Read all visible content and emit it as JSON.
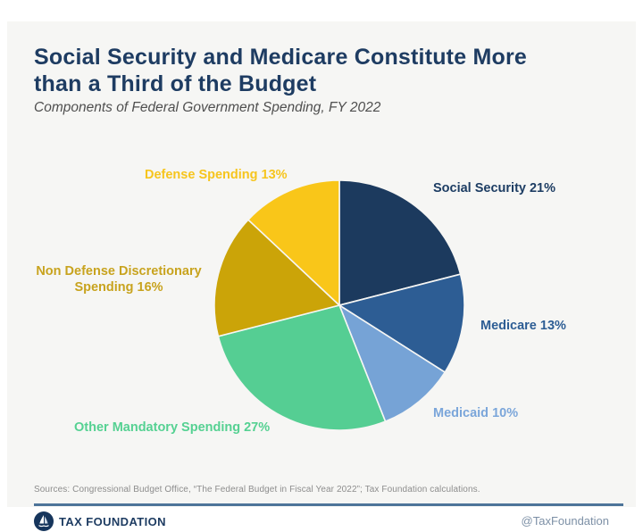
{
  "header": {
    "title": "Social Security and Medicare Constitute More\nthan a Third of the Budget",
    "subtitle": "Components of Federal Government Spending, FY 2022"
  },
  "chart_data": {
    "type": "pie",
    "title": "Components of Federal Government Spending, FY 2022",
    "unit": "percent of federal spending",
    "total": 100,
    "start_angle_deg": 0,
    "direction": "clockwise",
    "legend_position": "outside-labels",
    "slices": [
      {
        "id": "social-security",
        "label": "Social Security",
        "value": 21,
        "display_label": "Social Security 21%",
        "color": "#1c3a5e",
        "label_color": "#1d3d63"
      },
      {
        "id": "medicare",
        "label": "Medicare",
        "value": 13,
        "display_label": "Medicare 13%",
        "color": "#2d5d94",
        "label_color": "#2d5d94"
      },
      {
        "id": "medicaid",
        "label": "Medicaid",
        "value": 10,
        "display_label": "Medicaid 10%",
        "color": "#76a3d6",
        "label_color": "#7ba6da"
      },
      {
        "id": "other-mandatory",
        "label": "Other Mandatory Spending",
        "value": 27,
        "display_label": "Other Mandatory Spending 27%",
        "color": "#55ce93",
        "label_color": "#55d192"
      },
      {
        "id": "non-defense-discretionary",
        "label": "Non Defense Discretionary Spending",
        "value": 16,
        "display_label": "Non Defense Discretionary\nSpending 16%",
        "color": "#cba408",
        "label_color": "#c8a31e"
      },
      {
        "id": "defense",
        "label": "Defense Spending",
        "value": 13,
        "display_label": "Defense Spending 13%",
        "color": "#f9c619",
        "label_color": "#f6c51e"
      }
    ]
  },
  "footer": {
    "sources": "Sources: Congressional Budget Office, “The Federal Budget in Fiscal Year 2022”; Tax Foundation calculations.",
    "brand": "TAX FOUNDATION",
    "handle": "@TaxFoundation"
  }
}
